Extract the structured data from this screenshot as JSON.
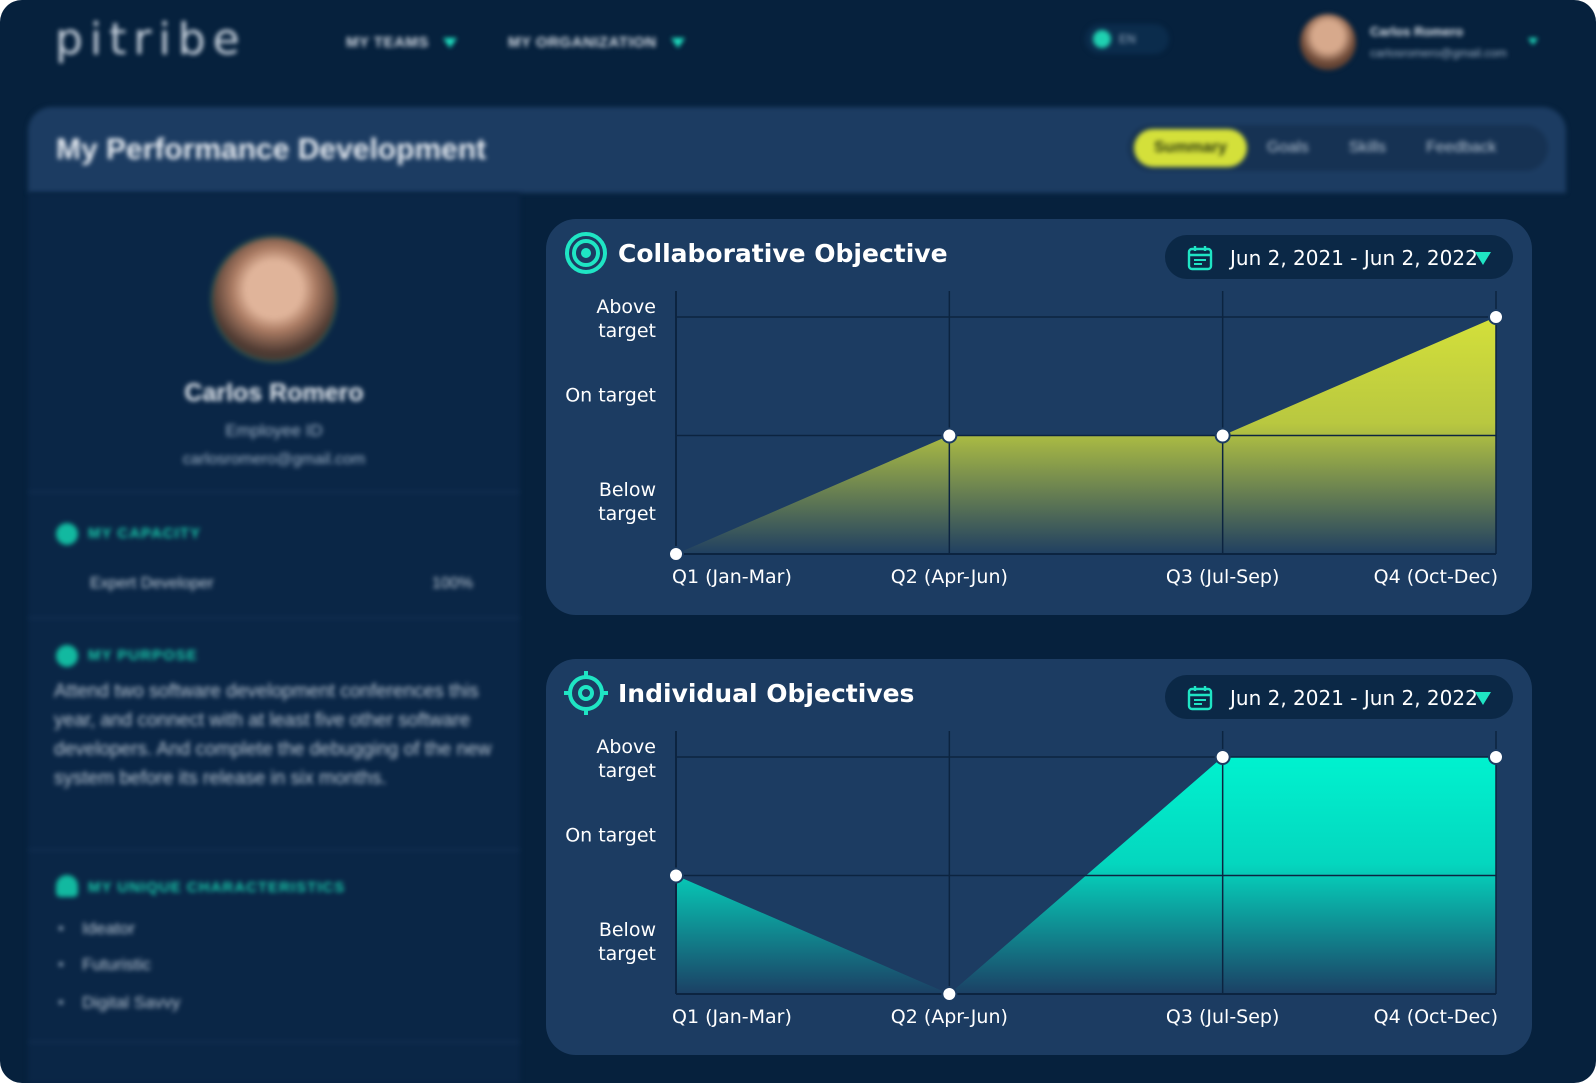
{
  "header": {
    "logo": "pitribe",
    "nav": [
      {
        "label": "MY TEAMS"
      },
      {
        "label": "MY ORGANIZATION"
      }
    ],
    "language": "EN",
    "user": {
      "name": "Carlos Romero",
      "email": "carlosromero@gmail.com"
    }
  },
  "page": {
    "title": "My Performance Development",
    "tabs": [
      {
        "label": "Summary",
        "active": true
      },
      {
        "label": "Goals",
        "active": false
      },
      {
        "label": "Skills",
        "active": false
      },
      {
        "label": "Feedback",
        "active": false
      }
    ]
  },
  "sidebar": {
    "name": "Carlos Romero",
    "employee_id": "Employee ID",
    "email": "carlosromero@gmail.com",
    "capacity": {
      "title": "MY CAPACITY",
      "role": "Expert Developer",
      "value": "100%"
    },
    "purpose": {
      "title": "MY PURPOSE",
      "text": "Attend two software development conferences this year, and connect with at least five other software developers. And complete the debugging of the new system before its release in six months."
    },
    "characteristics": {
      "title": "MY UNIQUE CHARACTERISTICS",
      "items": [
        "Ideator",
        "Futuristic",
        "Digital Savvy"
      ]
    }
  },
  "cards": [
    {
      "title": "Collaborative Objective",
      "date_range": "Jun 2, 2021 - Jun 2, 2022"
    },
    {
      "title": "Individual Objectives",
      "date_range": "Jun 2, 2021 - Jun 2, 2022"
    }
  ],
  "colors": {
    "background": "#06213d",
    "card": "#1c3c62",
    "accent_teal": "#1fe5c4",
    "accent_lime": "#d4e03a"
  },
  "chart_data": [
    {
      "type": "area",
      "title": "Collaborative Objective",
      "categories": [
        "Q1 (Jan-Mar)",
        "Q2 (Apr-Jun)",
        "Q3 (Jul-Sep)",
        "Q4 (Oct-Dec)"
      ],
      "y_levels": [
        "Below\ntarget",
        "On target",
        "Above\ntarget"
      ],
      "values": [
        0,
        1,
        1,
        2
      ],
      "ylim": [
        0,
        2
      ],
      "color": "#d4e03a",
      "grid": true
    },
    {
      "type": "area",
      "title": "Individual Objectives",
      "categories": [
        "Q1 (Jan-Mar)",
        "Q2 (Apr-Jun)",
        "Q3 (Jul-Sep)",
        "Q4 (Oct-Dec)"
      ],
      "y_levels": [
        "Below\ntarget",
        "On target",
        "Above\ntarget"
      ],
      "values": [
        1,
        0,
        2,
        2
      ],
      "ylim": [
        0,
        2
      ],
      "color": "#00f2cf",
      "grid": true
    }
  ]
}
